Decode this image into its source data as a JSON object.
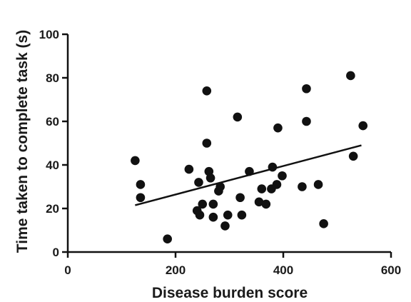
{
  "chart_data": {
    "type": "scatter",
    "xlabel": "Disease burden score",
    "ylabel": "Time taken to complete task (s)",
    "xlim": [
      0,
      600
    ],
    "ylim": [
      0,
      100
    ],
    "x_ticks": [
      "0",
      "200",
      "400",
      "600"
    ],
    "y_ticks": [
      "0",
      "20",
      "40",
      "60",
      "80",
      "100"
    ],
    "grid": false,
    "points": [
      {
        "x": 125,
        "y": 42
      },
      {
        "x": 135,
        "y": 31
      },
      {
        "x": 135,
        "y": 25
      },
      {
        "x": 185,
        "y": 6
      },
      {
        "x": 225,
        "y": 38
      },
      {
        "x": 240,
        "y": 19
      },
      {
        "x": 243,
        "y": 32
      },
      {
        "x": 245,
        "y": 17
      },
      {
        "x": 250,
        "y": 22
      },
      {
        "x": 258,
        "y": 74
      },
      {
        "x": 258,
        "y": 50
      },
      {
        "x": 262,
        "y": 37
      },
      {
        "x": 265,
        "y": 34
      },
      {
        "x": 270,
        "y": 16
      },
      {
        "x": 270,
        "y": 22
      },
      {
        "x": 280,
        "y": 28
      },
      {
        "x": 283,
        "y": 30
      },
      {
        "x": 292,
        "y": 12
      },
      {
        "x": 297,
        "y": 17
      },
      {
        "x": 315,
        "y": 62
      },
      {
        "x": 320,
        "y": 25
      },
      {
        "x": 323,
        "y": 17
      },
      {
        "x": 337,
        "y": 37
      },
      {
        "x": 355,
        "y": 23
      },
      {
        "x": 360,
        "y": 29
      },
      {
        "x": 368,
        "y": 22
      },
      {
        "x": 378,
        "y": 29
      },
      {
        "x": 380,
        "y": 39
      },
      {
        "x": 388,
        "y": 31
      },
      {
        "x": 390,
        "y": 57
      },
      {
        "x": 398,
        "y": 35
      },
      {
        "x": 435,
        "y": 30
      },
      {
        "x": 443,
        "y": 75
      },
      {
        "x": 443,
        "y": 60
      },
      {
        "x": 465,
        "y": 31
      },
      {
        "x": 475,
        "y": 13
      },
      {
        "x": 525,
        "y": 81
      },
      {
        "x": 530,
        "y": 44
      },
      {
        "x": 548,
        "y": 58
      }
    ],
    "trendline": {
      "x": [
        125,
        545
      ],
      "y": [
        21.5,
        49
      ]
    },
    "colors": {
      "points": "#111111",
      "line": "#111111",
      "axes": "#111111"
    }
  }
}
